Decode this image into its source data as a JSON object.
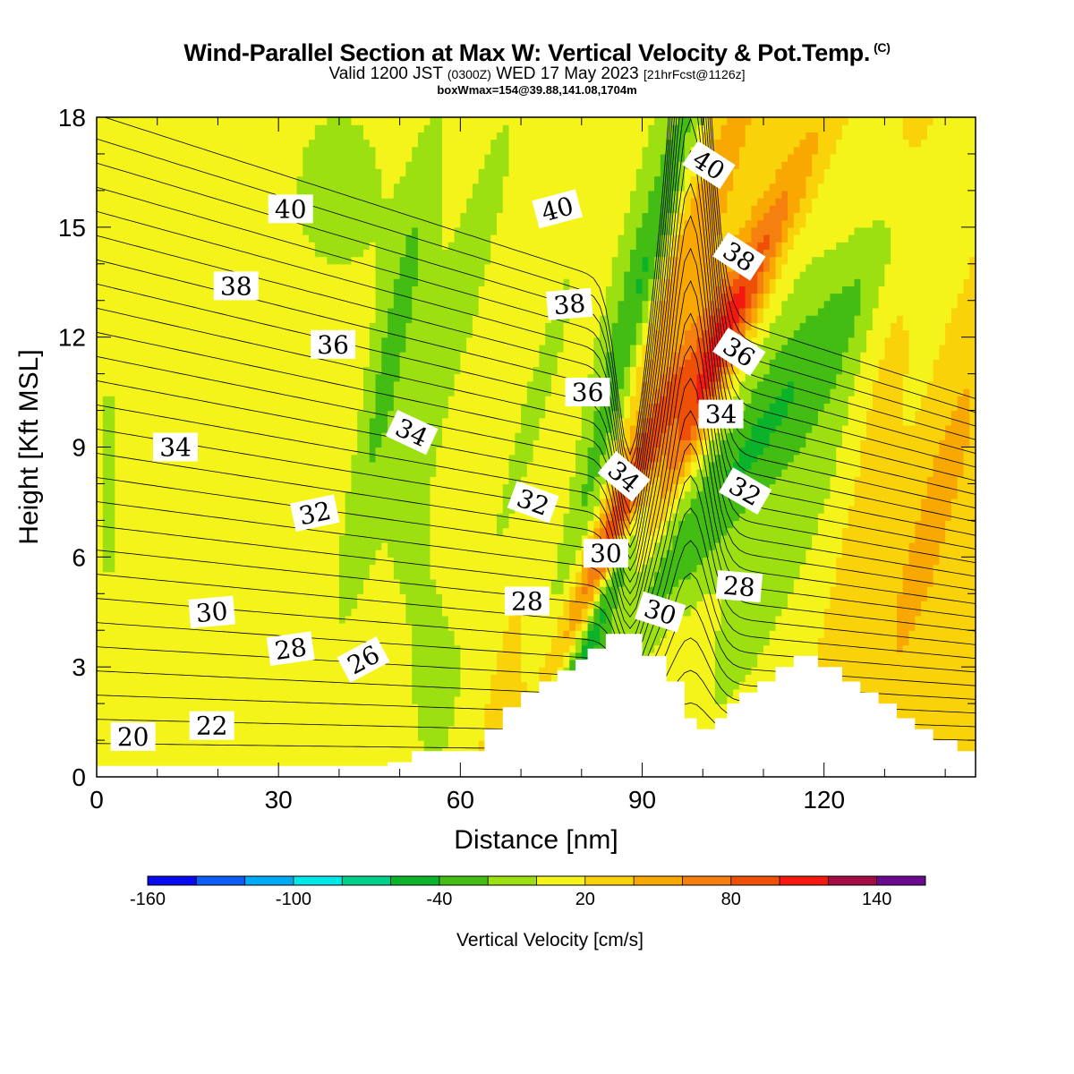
{
  "header": {
    "title": "Wind-Parallel Section at Max W: Vertical Velocity & Pot.Temp.",
    "copyright": "(C)",
    "valid_prefix": "Valid 1200 JST",
    "valid_utc": "(0300Z)",
    "valid_date": "WED 17 May 2023",
    "forecast": "[21hrFcst@1126z]",
    "box_info": "boxWmax=154@39.88,141.08,1704m"
  },
  "colors": {
    "terrain": "#ffffff",
    "frame": "#000000",
    "contour": "#000000"
  },
  "chart_data": {
    "type": "heatmap",
    "xlabel": "Distance [nm]",
    "ylabel": "Height [Kft MSL]",
    "xlim": [
      0,
      145
    ],
    "ylim": [
      0,
      18
    ],
    "x_ticks": [
      0,
      30,
      60,
      90,
      120
    ],
    "y_ticks": [
      0,
      3,
      6,
      9,
      12,
      15,
      18
    ],
    "colorbar": {
      "label": "Vertical Velocity [cm/s]",
      "range": [
        -160,
        160
      ],
      "step": 20,
      "tick_values": [
        -160,
        -100,
        -40,
        20,
        80,
        140
      ],
      "tick_labels": [
        "-160",
        "-100",
        "-40",
        "20",
        "80",
        "140"
      ],
      "colors": [
        "#0a0af0",
        "#0a5ef5",
        "#00aaf5",
        "#00e8e8",
        "#00d08a",
        "#0bb32a",
        "#43bc13",
        "#9de012",
        "#f4f41a",
        "#f9d20a",
        "#f8a800",
        "#f58010",
        "#ee5008",
        "#f51810",
        "#a40a44",
        "#6a0a8e"
      ]
    },
    "terrain_profile": [
      [
        0,
        0.3
      ],
      [
        48,
        0.3
      ],
      [
        48,
        0.4
      ],
      [
        52,
        0.4
      ],
      [
        52,
        0.7
      ],
      [
        64,
        0.7
      ],
      [
        64,
        1.3
      ],
      [
        67,
        1.3
      ],
      [
        67,
        1.9
      ],
      [
        70,
        1.9
      ],
      [
        70,
        2.3
      ],
      [
        73,
        2.3
      ],
      [
        73,
        2.6
      ],
      [
        76,
        2.6
      ],
      [
        76,
        2.9
      ],
      [
        79,
        2.9
      ],
      [
        79,
        3.2
      ],
      [
        81,
        3.2
      ],
      [
        81,
        3.5
      ],
      [
        84,
        3.5
      ],
      [
        84,
        3.9
      ],
      [
        90,
        3.9
      ],
      [
        90,
        3.3
      ],
      [
        94,
        3.3
      ],
      [
        94,
        2.6
      ],
      [
        97,
        2.6
      ],
      [
        97,
        1.6
      ],
      [
        99,
        1.6
      ],
      [
        99,
        1.3
      ],
      [
        102,
        1.3
      ],
      [
        102,
        1.6
      ],
      [
        104,
        1.6
      ],
      [
        104,
        2.0
      ],
      [
        106,
        2.0
      ],
      [
        106,
        2.3
      ],
      [
        109,
        2.3
      ],
      [
        109,
        2.6
      ],
      [
        112,
        2.6
      ],
      [
        112,
        3.0
      ],
      [
        115,
        3.0
      ],
      [
        115,
        3.3
      ],
      [
        119,
        3.3
      ],
      [
        119,
        3.0
      ],
      [
        123,
        3.0
      ],
      [
        123,
        2.6
      ],
      [
        126,
        2.6
      ],
      [
        126,
        2.3
      ],
      [
        129,
        2.3
      ],
      [
        129,
        2.0
      ],
      [
        132,
        2.0
      ],
      [
        132,
        1.6
      ],
      [
        135,
        1.6
      ],
      [
        135,
        1.3
      ],
      [
        138,
        1.3
      ],
      [
        138,
        1.0
      ],
      [
        142,
        1.0
      ],
      [
        142,
        0.7
      ],
      [
        145,
        0.7
      ]
    ],
    "velocity_field": {
      "background": 20,
      "features": [
        {
          "x": 95,
          "y": 9.5,
          "sx": 3.2,
          "sy": 4.5,
          "tilt": 0.36,
          "amp": 150
        },
        {
          "x": 94,
          "y": 13,
          "sx": 3.5,
          "sy": 5,
          "tilt": 0.3,
          "amp": 40
        },
        {
          "x": 89,
          "y": 7,
          "sx": 1.8,
          "sy": 3.5,
          "tilt": 0.3,
          "amp": -120
        },
        {
          "x": 88,
          "y": 12,
          "sx": 2.2,
          "sy": 6,
          "tilt": 0.2,
          "amp": -50
        },
        {
          "x": 104,
          "y": 8,
          "sx": 5,
          "sy": 6,
          "tilt": 0.5,
          "amp": -45
        },
        {
          "x": 84,
          "y": 10,
          "sx": 4,
          "sy": 9,
          "tilt": 0.15,
          "amp": -30
        },
        {
          "x": 115,
          "y": 7,
          "sx": 5,
          "sy": 5,
          "tilt": 0.3,
          "amp": -30
        },
        {
          "x": 48,
          "y": 11,
          "sx": 2.5,
          "sy": 5,
          "tilt": 0.15,
          "amp": -40
        },
        {
          "x": 72,
          "y": 10,
          "sx": 2.5,
          "sy": 5,
          "tilt": 0.2,
          "amp": -25
        },
        {
          "x": 40,
          "y": 16,
          "sx": 10,
          "sy": 3,
          "tilt": 0,
          "amp": -25
        },
        {
          "x": 60,
          "y": 13,
          "sx": 4,
          "sy": 7,
          "tilt": 0.2,
          "amp": -25
        },
        {
          "x": 55,
          "y": 3,
          "sx": 4,
          "sy": 3,
          "tilt": 0,
          "amp": -25
        },
        {
          "x": 112,
          "y": 12,
          "sx": 7,
          "sy": 5,
          "tilt": 0.2,
          "amp": -20
        },
        {
          "x": 138,
          "y": 7,
          "sx": 2.5,
          "sy": 3.5,
          "tilt": 0.2,
          "amp": 35
        },
        {
          "x": 131,
          "y": 13,
          "sx": 3,
          "sy": 4,
          "tilt": 0.15,
          "amp": 20
        },
        {
          "x": 2,
          "y": 8,
          "sx": 2,
          "sy": 4,
          "tilt": 0,
          "amp": -25
        }
      ]
    },
    "theta_contours": {
      "min": 17,
      "max": 44,
      "labels": [
        {
          "value": "20",
          "x": 6,
          "y": 1.1,
          "angle": 0
        },
        {
          "value": "22",
          "x": 19,
          "y": 1.4,
          "angle": 0
        },
        {
          "value": "26",
          "x": 44,
          "y": 3.2,
          "angle": -28
        },
        {
          "value": "28",
          "x": 32,
          "y": 3.5,
          "angle": -8
        },
        {
          "value": "28",
          "x": 71,
          "y": 4.8,
          "angle": 0
        },
        {
          "value": "28",
          "x": 106,
          "y": 5.2,
          "angle": 5
        },
        {
          "value": "30",
          "x": 19,
          "y": 4.5,
          "angle": -5
        },
        {
          "value": "30",
          "x": 84,
          "y": 6.1,
          "angle": 0
        },
        {
          "value": "30",
          "x": 93,
          "y": 4.5,
          "angle": 18
        },
        {
          "value": "32",
          "x": 36,
          "y": 7.2,
          "angle": -12
        },
        {
          "value": "32",
          "x": 72,
          "y": 7.5,
          "angle": 20
        },
        {
          "value": "32",
          "x": 107,
          "y": 7.8,
          "angle": 30
        },
        {
          "value": "34",
          "x": 13,
          "y": 9,
          "angle": 0
        },
        {
          "value": "34",
          "x": 52,
          "y": 9.4,
          "angle": 25
        },
        {
          "value": "34",
          "x": 87,
          "y": 8.2,
          "angle": 40
        },
        {
          "value": "34",
          "x": 103,
          "y": 9.9,
          "angle": 0
        },
        {
          "value": "36",
          "x": 39,
          "y": 11.8,
          "angle": 0
        },
        {
          "value": "36",
          "x": 81,
          "y": 10.5,
          "angle": 0
        },
        {
          "value": "36",
          "x": 106,
          "y": 11.6,
          "angle": 33
        },
        {
          "value": "38",
          "x": 23,
          "y": 13.4,
          "angle": 0
        },
        {
          "value": "38",
          "x": 78,
          "y": 12.9,
          "angle": -5
        },
        {
          "value": "38",
          "x": 106,
          "y": 14.2,
          "angle": 33
        },
        {
          "value": "40",
          "x": 32,
          "y": 15.5,
          "angle": 0
        },
        {
          "value": "40",
          "x": 76,
          "y": 15.5,
          "angle": -15
        },
        {
          "value": "40",
          "x": 101,
          "y": 16.7,
          "angle": 33
        }
      ]
    }
  }
}
